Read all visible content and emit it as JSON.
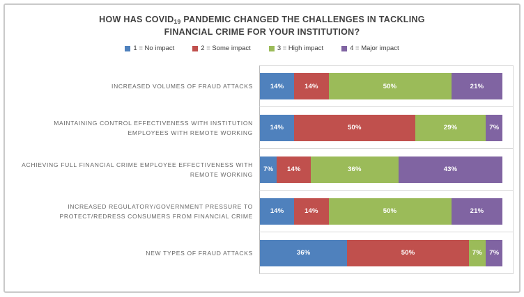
{
  "title": {
    "full": "HOW HAS COVID19 PANDEMIC CHANGED THE CHALLENGES IN TACKLING FINANCIAL CRIME FOR YOUR INSTITUTION?",
    "line1_prefix": "HOW HAS COVID",
    "line1_subscript": "19",
    "line1_suffix": " PANDEMIC CHANGED THE CHALLENGES IN TACKLING",
    "line2": "FINANCIAL CRIME FOR YOUR INSTITUTION?"
  },
  "chart_data": {
    "type": "bar",
    "orientation": "horizontal",
    "stacked_100_percent": true,
    "title": "HOW HAS COVID19 PANDEMIC CHANGED THE CHALLENGES IN TACKLING FINANCIAL CRIME FOR YOUR INSTITUTION?",
    "value_suffix": "%",
    "legend_position": "top",
    "grid": "category-boundary-lines",
    "colors": {
      "no_impact": "#4F81BD",
      "some_impact": "#C0504D",
      "high_impact": "#9BBB59",
      "major_impact": "#8064A2",
      "title_text": "#404040",
      "category_text": "#666666",
      "gridline": "#d9d9d9",
      "axis_line": "#bdbdbd",
      "frame_border": "#c9c9c9"
    },
    "legend": [
      {
        "label": "1 = No impact",
        "color": "#4F81BD"
      },
      {
        "label": "2 = Some impact",
        "color": "#C0504D"
      },
      {
        "label": "3 = High impact",
        "color": "#9BBB59"
      },
      {
        "label": "4 = Major impact",
        "color": "#8064A2"
      }
    ],
    "categories": [
      "INCREASED VOLUMES OF FRAUD ATTACKS",
      "MAINTAINING CONTROL EFFECTIVENESS WITH INSTITUTION EMPLOYEES WITH REMOTE WORKING",
      "ACHIEVING FULL FINANCIAL CRIME EMPLOYEE EFFECTIVENESS WITH REMOTE WORKING",
      "INCREASED REGULATORY/GOVERNMENT PRESSURE TO PROTECT/REDRESS CONSUMERS FROM FINANCIAL CRIME",
      "NEW TYPES OF FRAUD ATTACKS"
    ],
    "series": [
      {
        "name": "1 = No impact",
        "color": "#4F81BD",
        "values": [
          14,
          14,
          7,
          14,
          36
        ]
      },
      {
        "name": "2 = Some impact",
        "color": "#C0504D",
        "values": [
          14,
          50,
          14,
          14,
          50
        ]
      },
      {
        "name": "3 = High impact",
        "color": "#9BBB59",
        "values": [
          50,
          29,
          36,
          50,
          7
        ]
      },
      {
        "name": "4 = Major impact",
        "color": "#8064A2",
        "values": [
          21,
          7,
          43,
          21,
          7
        ]
      }
    ],
    "rows": [
      {
        "category": "INCREASED VOLUMES OF FRAUD ATTACKS",
        "segments": [
          {
            "value": 14,
            "label": "14%"
          },
          {
            "value": 14,
            "label": "14%"
          },
          {
            "value": 50,
            "label": "50%"
          },
          {
            "value": 21,
            "label": "21%"
          }
        ]
      },
      {
        "category": "MAINTAINING CONTROL EFFECTIVENESS WITH INSTITUTION EMPLOYEES WITH REMOTE WORKING",
        "segments": [
          {
            "value": 14,
            "label": "14%"
          },
          {
            "value": 50,
            "label": "50%"
          },
          {
            "value": 29,
            "label": "29%"
          },
          {
            "value": 7,
            "label": "7%"
          }
        ]
      },
      {
        "category": "ACHIEVING FULL FINANCIAL CRIME EMPLOYEE EFFECTIVENESS WITH REMOTE WORKING",
        "segments": [
          {
            "value": 7,
            "label": "7%"
          },
          {
            "value": 14,
            "label": "14%"
          },
          {
            "value": 36,
            "label": "36%"
          },
          {
            "value": 43,
            "label": "43%"
          }
        ]
      },
      {
        "category": "INCREASED REGULATORY/GOVERNMENT PRESSURE TO PROTECT/REDRESS CONSUMERS FROM FINANCIAL CRIME",
        "segments": [
          {
            "value": 14,
            "label": "14%"
          },
          {
            "value": 14,
            "label": "14%"
          },
          {
            "value": 50,
            "label": "50%"
          },
          {
            "value": 21,
            "label": "21%"
          }
        ]
      },
      {
        "category": "NEW TYPES OF FRAUD ATTACKS",
        "segments": [
          {
            "value": 36,
            "label": "36%"
          },
          {
            "value": 50,
            "label": "50%"
          },
          {
            "value": 7,
            "label": "7%"
          },
          {
            "value": 7,
            "label": "7%"
          }
        ]
      }
    ]
  }
}
